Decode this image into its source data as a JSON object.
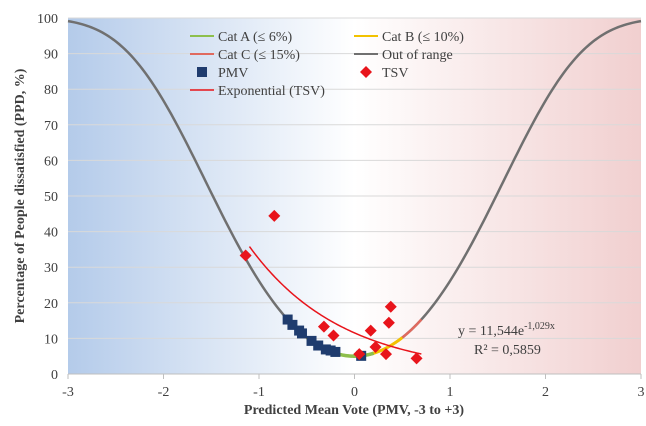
{
  "chart_data": {
    "type": "scatter",
    "xlabel": "Predicted Mean Vote (PMV, -3 to +3)",
    "ylabel": "Percentage of People dissatisfied (PPD, %)",
    "xlim": [
      -3,
      3
    ],
    "ylim": [
      0,
      100
    ],
    "x_ticks": [
      "-3",
      "-2",
      "-1",
      "0",
      "1",
      "2",
      "3"
    ],
    "y_ticks": [
      "0",
      "10",
      "20",
      "30",
      "40",
      "50",
      "60",
      "70",
      "80",
      "90",
      "100"
    ],
    "grid": "horizontal",
    "legend_position": "top-center",
    "background": {
      "cold_color": "#b4cbea",
      "hot_color": "#f1cfcf"
    },
    "series": [
      {
        "name": "Cat A (≤ 6%)",
        "type": "line",
        "color": "#8dbf4c",
        "pmv_range": [
          -0.2,
          0.2
        ]
      },
      {
        "name": "Cat B (≤ 10%)",
        "type": "line",
        "color": "#f2c200",
        "pmv_range": [
          -0.5,
          0.5
        ]
      },
      {
        "name": "Cat C (≤ 15%)",
        "type": "line",
        "color": "#e06a5f",
        "pmv_range": [
          -0.7,
          0.7
        ]
      },
      {
        "name": "Out of range",
        "type": "line",
        "color": "#707070",
        "pmv_range": [
          -3,
          3
        ]
      },
      {
        "name": "PMV",
        "type": "scatter",
        "marker": "square",
        "color": "#1f3c6e",
        "points": [
          [
            -0.7,
            15.3
          ],
          [
            -0.65,
            13.8
          ],
          [
            -0.58,
            12.2
          ],
          [
            -0.55,
            11.4
          ],
          [
            -0.45,
            9.3
          ],
          [
            -0.38,
            8.0
          ],
          [
            -0.3,
            6.9
          ],
          [
            -0.25,
            6.6
          ],
          [
            -0.2,
            6.2
          ],
          [
            0.07,
            5.1
          ]
        ]
      },
      {
        "name": "TSV",
        "type": "scatter",
        "marker": "diamond",
        "color": "#e8141b",
        "points": [
          [
            -1.14,
            33.3
          ],
          [
            -0.84,
            44.4
          ],
          [
            -0.32,
            13.3
          ],
          [
            -0.22,
            10.8
          ],
          [
            0.05,
            5.6
          ],
          [
            0.17,
            12.2
          ],
          [
            0.22,
            7.6
          ],
          [
            0.33,
            5.6
          ],
          [
            0.36,
            14.4
          ],
          [
            0.38,
            18.9
          ],
          [
            0.65,
            4.4
          ]
        ]
      },
      {
        "name": "Exponential (TSV)",
        "type": "line",
        "color": "#e8141b",
        "fit": {
          "a": 11.544,
          "b": -1.029,
          "x_range": [
            -1.1,
            0.7
          ]
        }
      }
    ],
    "annotations": {
      "equation_prefix": "y = 11,544e",
      "equation_exponent": "-1,029x",
      "r_squared": "R² = 0,5859"
    }
  }
}
